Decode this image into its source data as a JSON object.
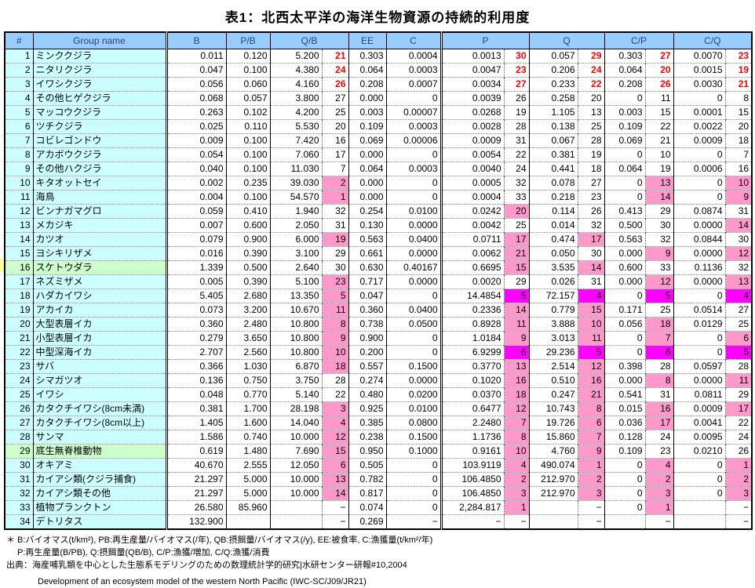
{
  "title": "表1：北西太平洋の海洋生物資源の持続的利用度",
  "colors": {
    "header_bg": "#99CCFF",
    "header_text": "#2b3f87",
    "label_cell_bg": "#CCFFFF",
    "highlight_row_bg": "#CCFFCC",
    "rank_pink_bg": "#FF99CC",
    "rank_magenta_bg": "#FF00FF",
    "rank_red_text": "#FF0000",
    "margin_marker": "#FFFF99"
  },
  "table": {
    "headers": [
      "#",
      "Group name",
      "B",
      "P/B",
      "Q/B",
      "EE",
      "C",
      "P",
      "Q",
      "C/P",
      "C/Q"
    ],
    "rows": [
      {
        "num": "1",
        "name": "ミンククジラ",
        "b": "0.011",
        "pb": "0.120",
        "qb": "5.200",
        "qb_rank": "21",
        "qb_style": "red",
        "ee": "0.303",
        "c": "0.0004",
        "p": "0.0013",
        "p_rank": "30",
        "p_style": "red",
        "q": "0.057",
        "q_rank": "29",
        "q_style": "red",
        "cp": "0.303",
        "cp_rank": "27",
        "cp_style": "red",
        "cq": "0.0070",
        "cq_rank": "23",
        "cq_style": "red"
      },
      {
        "num": "2",
        "name": "ニタリクジラ",
        "b": "0.047",
        "pb": "0.100",
        "qb": "4.380",
        "qb_rank": "24",
        "qb_style": "red",
        "ee": "0.064",
        "c": "0.0003",
        "p": "0.0047",
        "p_rank": "23",
        "p_style": "red",
        "q": "0.206",
        "q_rank": "24",
        "q_style": "red",
        "cp": "0.064",
        "cp_rank": "20",
        "cp_style": "red",
        "cq": "0.0015",
        "cq_rank": "19",
        "cq_style": "red"
      },
      {
        "num": "3",
        "name": "イワシクジラ",
        "b": "0.056",
        "pb": "0.060",
        "qb": "4.160",
        "qb_rank": "26",
        "qb_style": "red",
        "ee": "0.208",
        "c": "0.0007",
        "p": "0.0034",
        "p_rank": "27",
        "p_style": "red",
        "q": "0.233",
        "q_rank": "22",
        "q_style": "red",
        "cp": "0.208",
        "cp_rank": "26",
        "cp_style": "red",
        "cq": "0.0030",
        "cq_rank": "21",
        "cq_style": "red"
      },
      {
        "num": "4",
        "name": "その他ヒゲクジラ",
        "b": "0.068",
        "pb": "0.057",
        "qb": "3.800",
        "qb_rank": "27",
        "ee": "0.000",
        "c": "0",
        "p": "0.0039",
        "p_rank": "26",
        "q": "0.258",
        "q_rank": "20",
        "cp": "0",
        "cp_rank": "11",
        "cq": "0",
        "cq_rank": "8"
      },
      {
        "num": "5",
        "name": "マッコウクジラ",
        "b": "0.263",
        "pb": "0.102",
        "qb": "4.200",
        "qb_rank": "25",
        "ee": "0.003",
        "c": "0.00007",
        "p": "0.0268",
        "p_rank": "19",
        "q": "1.105",
        "q_rank": "13",
        "cp": "0.003",
        "cp_rank": "15",
        "cq": "0.0001",
        "cq_rank": "15"
      },
      {
        "num": "6",
        "name": "ツチクジラ",
        "b": "0.025",
        "pb": "0.110",
        "qb": "5.530",
        "qb_rank": "20",
        "ee": "0.109",
        "c": "0.0003",
        "p": "0.0028",
        "p_rank": "28",
        "q": "0.138",
        "q_rank": "25",
        "cp": "0.109",
        "cp_rank": "22",
        "cq": "0.0022",
        "cq_rank": "20"
      },
      {
        "num": "7",
        "name": "コビレゴンドウ",
        "b": "0.009",
        "pb": "0.100",
        "qb": "7.420",
        "qb_rank": "16",
        "ee": "0.069",
        "c": "0.00006",
        "p": "0.0009",
        "p_rank": "31",
        "q": "0.067",
        "q_rank": "28",
        "cp": "0.069",
        "cp_rank": "21",
        "cq": "0.0009",
        "cq_rank": "18"
      },
      {
        "num": "8",
        "name": "アカボウクジラ",
        "b": "0.054",
        "pb": "0.100",
        "qb": "7.060",
        "qb_rank": "17",
        "ee": "0.000",
        "c": "0",
        "p": "0.0054",
        "p_rank": "22",
        "q": "0.381",
        "q_rank": "19",
        "cp": "0",
        "cp_rank": "10",
        "cq": "0",
        "cq_rank": "7"
      },
      {
        "num": "9",
        "name": "その他ハクジラ",
        "b": "0.040",
        "pb": "0.100",
        "qb": "11.030",
        "qb_rank": "7",
        "ee": "0.064",
        "c": "0.0003",
        "p": "0.0040",
        "p_rank": "24",
        "q": "0.441",
        "q_rank": "18",
        "cp": "0.064",
        "cp_rank": "19",
        "cq": "0.0006",
        "cq_rank": "16"
      },
      {
        "num": "10",
        "name": "キタオットセイ",
        "b": "0.002",
        "pb": "0.235",
        "qb": "39.030",
        "qb_rank": "2",
        "qb_style": "pink",
        "ee": "0.000",
        "c": "0",
        "p": "0.0005",
        "p_rank": "32",
        "q": "0.078",
        "q_rank": "27",
        "cp": "0",
        "cp_rank": "13",
        "cp_style": "pink",
        "cq": "0",
        "cq_rank": "10",
        "cq_style": "pink"
      },
      {
        "num": "11",
        "name": "海鳥",
        "b": "0.004",
        "pb": "0.100",
        "qb": "54.570",
        "qb_rank": "1",
        "qb_style": "pink",
        "ee": "0.000",
        "c": "0",
        "p": "0.0004",
        "p_rank": "33",
        "q": "0.218",
        "q_rank": "23",
        "cp": "0",
        "cp_rank": "14",
        "cp_style": "pink",
        "cq": "0",
        "cq_rank": "9",
        "cq_style": "pink"
      },
      {
        "num": "12",
        "name": "ビンナガマグロ",
        "b": "0.059",
        "pb": "0.410",
        "qb": "1.940",
        "qb_rank": "32",
        "ee": "0.254",
        "c": "0.0100",
        "p": "0.0242",
        "p_rank": "20",
        "p_style": "pink",
        "q": "0.114",
        "q_rank": "26",
        "cp": "0.413",
        "cp_rank": "29",
        "cq": "0.0874",
        "cq_rank": "31"
      },
      {
        "num": "13",
        "name": "メカジキ",
        "b": "0.007",
        "pb": "0.600",
        "qb": "2.050",
        "qb_rank": "31",
        "ee": "0.130",
        "c": "0.0000",
        "p": "0.0042",
        "p_rank": "25",
        "q": "0.014",
        "q_rank": "32",
        "cp": "0.500",
        "cp_rank": "30",
        "cq": "0.0000",
        "cq_rank": "14",
        "cq_style": "pink"
      },
      {
        "num": "14",
        "name": "カツオ",
        "b": "0.079",
        "pb": "0.900",
        "qb": "6.000",
        "qb_rank": "19",
        "qb_style": "pink",
        "ee": "0.563",
        "c": "0.0400",
        "p": "0.0711",
        "p_rank": "17",
        "p_style": "pink",
        "q": "0.474",
        "q_rank": "17",
        "q_style": "pink",
        "cp": "0.563",
        "cp_rank": "32",
        "cq": "0.0844",
        "cq_rank": "30"
      },
      {
        "num": "15",
        "name": "ヨシキリザメ",
        "b": "0.016",
        "pb": "0.390",
        "qb": "3.100",
        "qb_rank": "29",
        "ee": "0.661",
        "c": "0.0000",
        "p": "0.0062",
        "p_rank": "21",
        "p_style": "pink",
        "q": "0.050",
        "q_rank": "30",
        "cp": "0.000",
        "cp_rank": "9",
        "cp_style": "pink",
        "cq": "0.0000",
        "cq_rank": "12",
        "cq_style": "pink"
      },
      {
        "num": "16",
        "name": "スケトウダラ",
        "row_highlight": "green",
        "b": "1.339",
        "pb": "0.500",
        "qb": "2.640",
        "qb_rank": "30",
        "ee": "0.630",
        "c": "0.40167",
        "p": "0.6695",
        "p_rank": "15",
        "p_style": "pink",
        "q": "3.535",
        "q_rank": "14",
        "q_style": "pink",
        "cp": "0.600",
        "cp_rank": "33",
        "cq": "0.1136",
        "cq_rank": "32"
      },
      {
        "num": "17",
        "name": "ネズミザメ",
        "b": "0.005",
        "pb": "0.390",
        "qb": "5.100",
        "qb_rank": "23",
        "qb_style": "pink",
        "ee": "0.717",
        "c": "0.0000",
        "p": "0.0020",
        "p_rank": "29",
        "q": "0.026",
        "q_rank": "31",
        "cp": "0.000",
        "cp_rank": "12",
        "cp_style": "pink",
        "cq": "0.0000",
        "cq_rank": "13",
        "cq_style": "pink"
      },
      {
        "num": "18",
        "name": "ハダカイワシ",
        "b": "5.405",
        "pb": "2.680",
        "qb": "13.350",
        "qb_rank": "5",
        "qb_style": "pink",
        "ee": "0.047",
        "c": "0",
        "p": "14.4854",
        "p_rank": "5",
        "p_style": "magenta",
        "q": "72.157",
        "q_rank": "4",
        "q_style": "magenta",
        "cp": "0",
        "cp_rank": "5",
        "cp_style": "magenta",
        "cq": "0",
        "cq_rank": "4",
        "cq_style": "magenta"
      },
      {
        "num": "19",
        "name": "アカイカ",
        "b": "0.073",
        "pb": "3.200",
        "qb": "10.670",
        "qb_rank": "11",
        "qb_style": "pink",
        "ee": "0.360",
        "c": "0.0400",
        "p": "0.2336",
        "p_rank": "14",
        "p_style": "pink",
        "q": "0.779",
        "q_rank": "15",
        "q_style": "pink",
        "cp": "0.171",
        "cp_rank": "25",
        "cq": "0.0514",
        "cq_rank": "27"
      },
      {
        "num": "20",
        "name": "大型表層イカ",
        "b": "0.360",
        "pb": "2.480",
        "qb": "10.800",
        "qb_rank": "8",
        "qb_style": "pink",
        "ee": "0.738",
        "c": "0.0500",
        "p": "0.8928",
        "p_rank": "11",
        "p_style": "pink",
        "q": "3.888",
        "q_rank": "10",
        "q_style": "pink",
        "cp": "0.056",
        "cp_rank": "18",
        "cp_style": "pink",
        "cq": "0.0129",
        "cq_rank": "25"
      },
      {
        "num": "21",
        "name": "小型表層イカ",
        "b": "0.279",
        "pb": "3.650",
        "qb": "10.800",
        "qb_rank": "9",
        "qb_style": "pink",
        "ee": "0.900",
        "c": "0",
        "p": "1.0184",
        "p_rank": "9",
        "p_style": "pink",
        "q": "3.013",
        "q_rank": "11",
        "q_style": "pink",
        "cp": "0",
        "cp_rank": "7",
        "cp_style": "pink",
        "cq": "0",
        "cq_rank": "6",
        "cq_style": "pink"
      },
      {
        "num": "22",
        "name": "中型深海イカ",
        "b": "2.707",
        "pb": "2.560",
        "qb": "10.800",
        "qb_rank": "10",
        "qb_style": "pink",
        "ee": "0.200",
        "c": "0",
        "p": "6.9299",
        "p_rank": "6",
        "p_style": "magenta",
        "q": "29.236",
        "q_rank": "5",
        "q_style": "magenta",
        "cp": "0",
        "cp_rank": "6",
        "cp_style": "magenta",
        "cq": "0",
        "cq_rank": "5",
        "cq_style": "magenta"
      },
      {
        "num": "23",
        "name": "サバ",
        "b": "0.366",
        "pb": "1.030",
        "qb": "6.870",
        "qb_rank": "18",
        "qb_style": "pink",
        "ee": "0.557",
        "c": "0.1500",
        "p": "0.3770",
        "p_rank": "13",
        "p_style": "pink",
        "q": "2.514",
        "q_rank": "12",
        "q_style": "pink",
        "cp": "0.398",
        "cp_rank": "28",
        "cq": "0.0597",
        "cq_rank": "28"
      },
      {
        "num": "24",
        "name": "シマガツオ",
        "b": "0.136",
        "pb": "0.750",
        "qb": "3.750",
        "qb_rank": "28",
        "ee": "0.274",
        "c": "0.0000",
        "p": "0.1020",
        "p_rank": "16",
        "p_style": "pink",
        "q": "0.510",
        "q_rank": "16",
        "q_style": "pink",
        "cp": "0.000",
        "cp_rank": "8",
        "cp_style": "pink",
        "cq": "0.0000",
        "cq_rank": "11",
        "cq_style": "pink"
      },
      {
        "num": "25",
        "name": "イワシ",
        "b": "0.048",
        "pb": "0.770",
        "qb": "5.140",
        "qb_rank": "22",
        "ee": "0.480",
        "c": "0.0200",
        "p": "0.0370",
        "p_rank": "18",
        "p_style": "pink",
        "q": "0.247",
        "q_rank": "21",
        "q_style": "pink",
        "cp": "0.541",
        "cp_rank": "31",
        "cq": "0.0811",
        "cq_rank": "29"
      },
      {
        "num": "26",
        "name": "カタクチイワシ(8cm未満)",
        "b": "0.381",
        "pb": "1.700",
        "qb": "28.198",
        "qb_rank": "3",
        "qb_style": "pink",
        "ee": "0.925",
        "c": "0.0100",
        "p": "0.6477",
        "p_rank": "12",
        "p_style": "pink",
        "q": "10.743",
        "q_rank": "8",
        "q_style": "pink",
        "cp": "0.015",
        "cp_rank": "16",
        "cp_style": "pink",
        "cq": "0.0009",
        "cq_rank": "17",
        "cq_style": "pink"
      },
      {
        "num": "27",
        "name": "カタクチイワシ(8cm以上)",
        "b": "1.405",
        "pb": "1.600",
        "qb": "14.040",
        "qb_rank": "4",
        "qb_style": "pink",
        "ee": "0.385",
        "c": "0.0800",
        "p": "2.2480",
        "p_rank": "7",
        "p_style": "pink",
        "q": "19.726",
        "q_rank": "6",
        "q_style": "pink",
        "cp": "0.036",
        "cp_rank": "17",
        "cp_style": "pink",
        "cq": "0.0041",
        "cq_rank": "22"
      },
      {
        "num": "28",
        "name": "サンマ",
        "b": "1.586",
        "pb": "0.740",
        "qb": "10.000",
        "qb_rank": "12",
        "qb_style": "pink",
        "ee": "0.238",
        "c": "0.1500",
        "p": "1.1736",
        "p_rank": "8",
        "p_style": "pink",
        "q": "15.860",
        "q_rank": "7",
        "q_style": "pink",
        "cp": "0.128",
        "cp_rank": "24",
        "cq": "0.0095",
        "cq_rank": "24"
      },
      {
        "num": "29",
        "name": "底生無脊椎動物",
        "row_highlight": "green",
        "b": "0.619",
        "pb": "1.480",
        "qb": "7.690",
        "qb_rank": "15",
        "qb_style": "pink",
        "ee": "0.950",
        "c": "0.1000",
        "p": "0.9161",
        "p_rank": "10",
        "p_style": "pink",
        "q": "4.760",
        "q_rank": "9",
        "q_style": "pink",
        "cp": "0.109",
        "cp_rank": "23",
        "cq": "0.0210",
        "cq_rank": "26"
      },
      {
        "num": "30",
        "name": "オキアミ",
        "b": "40.670",
        "pb": "2.555",
        "qb": "12.050",
        "qb_rank": "6",
        "qb_style": "pink",
        "ee": "0.505",
        "c": "0",
        "p": "103.9119",
        "p_rank": "4",
        "p_style": "pink",
        "q": "490.074",
        "q_rank": "1",
        "q_style": "pink",
        "cp": "0",
        "cp_rank": "4",
        "cp_style": "pink",
        "cq": "0",
        "cq_rank": "1",
        "cq_style": "pink"
      },
      {
        "num": "31",
        "name": "カイアシ類(クジラ捕食)",
        "b": "21.297",
        "pb": "5.000",
        "qb": "10.000",
        "qb_rank": "13",
        "qb_style": "pink",
        "ee": "0.782",
        "c": "0",
        "p": "106.4850",
        "p_rank": "2",
        "p_style": "pink",
        "q": "212.970",
        "q_rank": "2",
        "q_style": "pink",
        "cp": "0",
        "cp_rank": "2",
        "cp_style": "pink",
        "cq": "0",
        "cq_rank": "2",
        "cq_style": "pink"
      },
      {
        "num": "32",
        "name": "カイアシ類その他",
        "b": "21.297",
        "pb": "5.000",
        "qb": "10.000",
        "qb_rank": "14",
        "qb_style": "pink",
        "ee": "0.817",
        "c": "0",
        "p": "106.4850",
        "p_rank": "3",
        "p_style": "pink",
        "q": "212.970",
        "q_rank": "3",
        "q_style": "pink",
        "cp": "0",
        "cp_rank": "3",
        "cp_style": "pink",
        "cq": "0",
        "cq_rank": "3",
        "cq_style": "pink"
      },
      {
        "num": "33",
        "name": "植物プランクトン",
        "b": "26.580",
        "pb": "85.960",
        "qb": "",
        "qb_rank": "−",
        "ee": "0.074",
        "c": "0",
        "p": "2,284.817",
        "p_rank": "1",
        "p_style": "pink",
        "q": "",
        "q_rank": "−",
        "cp": "0",
        "cp_rank": "1",
        "cp_style": "pink",
        "cq": "",
        "cq_rank": "−"
      },
      {
        "num": "34",
        "name": "デトリタス",
        "b": "132.900",
        "pb": "",
        "qb": "",
        "qb_rank": "−",
        "ee": "0.269",
        "c": "−",
        "p": "−",
        "p_rank": "−",
        "q": "",
        "q_rank": "−",
        "cp": "",
        "cp_rank": "−",
        "cq": "",
        "cq_rank": "−"
      }
    ]
  },
  "footnotes": {
    "line1": "＊ B:バイオマス(t/km²), PB:再生産量/バイオマス(/年), QB:摂餌量/バイオマス(/y), EE:被食率, C:漁獲量(t/km²/年)",
    "line2": "P:再生産量(B/PB), Q:摂餌量(QB/B), C/P:漁獲/増加, C/Q:漁獲/消費",
    "line3": "出典：海産哺乳類を中心とした生態系モデリングのための数理統計学的研究|水研センター研報#10,2004",
    "line4": "Development of an ecosystem model of the western North Pacific (IWC-SC/J09/JR21)"
  }
}
